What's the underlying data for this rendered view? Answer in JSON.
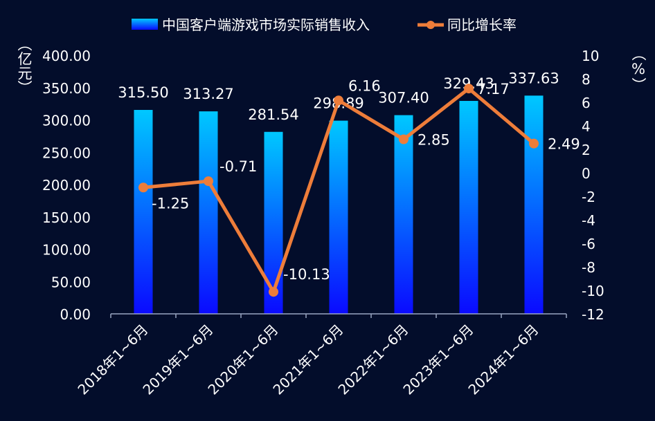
{
  "chart_data": {
    "type": "bar",
    "categories": [
      "2018年1~6月",
      "2019年1~6月",
      "2020年1~6月",
      "2021年1~6月",
      "2022年1~6月",
      "2023年1~6月",
      "2024年1~6月"
    ],
    "series": [
      {
        "name": "中国客户端游戏市场实际销售收入",
        "type": "bar",
        "axis": "left",
        "values": [
          315.5,
          313.27,
          281.54,
          298.89,
          307.4,
          329.43,
          337.63
        ],
        "labels": [
          "315.50",
          "313.27",
          "281.54",
          "298.89",
          "307.40",
          "329.43",
          "337.63"
        ],
        "color_top": "#00c8ff",
        "color_bottom": "#0a0aff"
      },
      {
        "name": "同比增长率",
        "type": "line",
        "axis": "right",
        "values": [
          -1.25,
          -0.71,
          -10.13,
          6.16,
          2.85,
          7.17,
          2.49
        ],
        "labels": [
          "-1.25",
          "-0.71",
          "-10.13",
          "6.16",
          "2.85",
          "7.17",
          "2.49"
        ],
        "color": "#ee7d3a"
      }
    ],
    "ylabel_left": "（亿元）",
    "ylabel_right": "（%）",
    "ylim_left": [
      0,
      400
    ],
    "ylim_right": [
      -12,
      10
    ],
    "yticks_left": [
      "0.00",
      "50.00",
      "100.00",
      "150.00",
      "200.00",
      "250.00",
      "300.00",
      "350.00",
      "400.00"
    ],
    "yticks_right": [
      "-12",
      "-10",
      "-8",
      "-6",
      "-4",
      "-2",
      "0",
      "2",
      "4",
      "6",
      "8",
      "10"
    ],
    "legend_position": "top-center",
    "grid": false,
    "background": "#030d2b",
    "text_color": "#ffffff"
  }
}
